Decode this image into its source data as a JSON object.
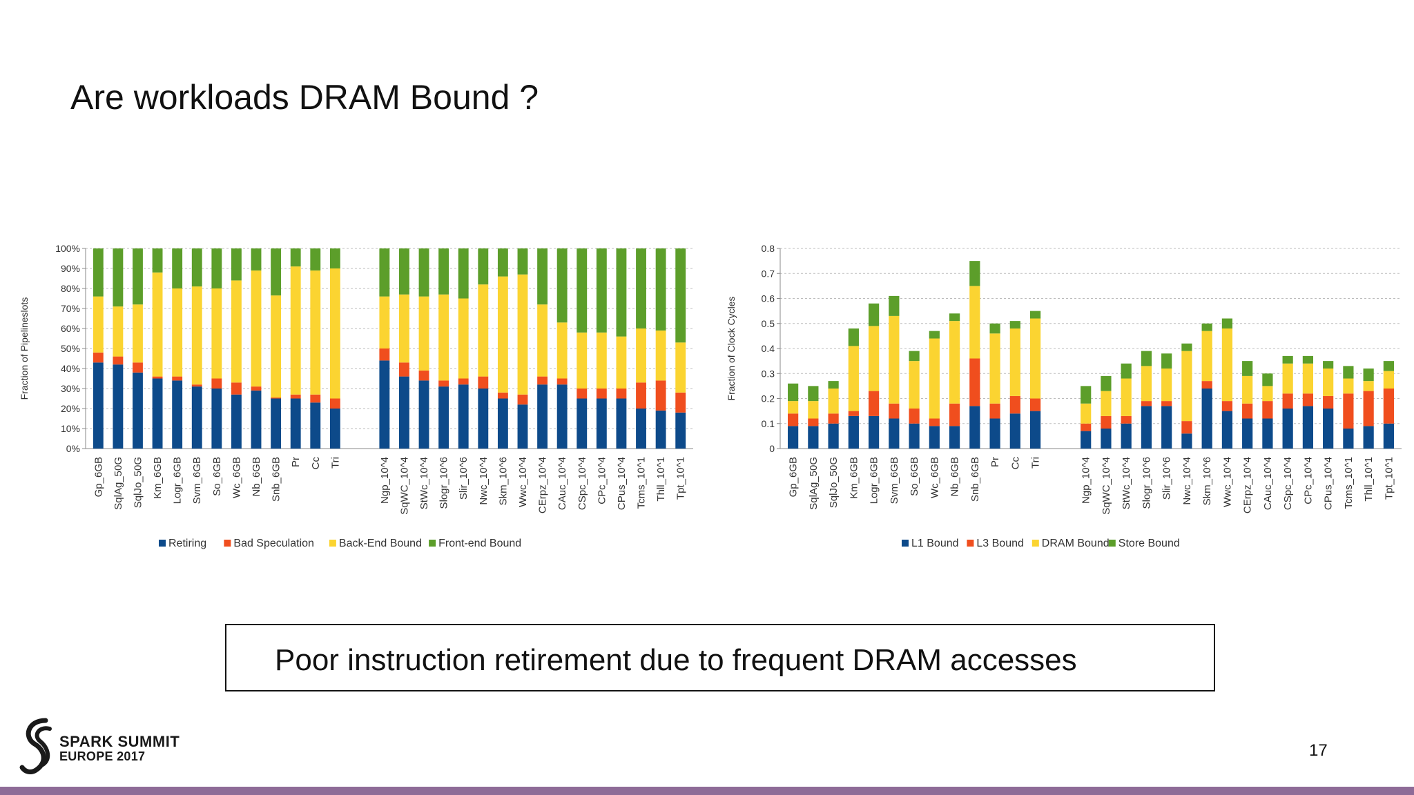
{
  "slide": {
    "title": "Are workloads DRAM Bound ?",
    "callout": "Poor instruction retirement due to frequent DRAM accesses",
    "page_number": "17",
    "logo": {
      "line1": "SPARK SUMMIT",
      "line2": "EUROPE 2017"
    },
    "bar_color": "#8e6b97"
  },
  "chart_data": [
    {
      "type": "bar",
      "stacked": true,
      "ylabel": "Fraction of Pipelineslots",
      "ylim": [
        0,
        100
      ],
      "yticks": [
        0,
        10,
        20,
        30,
        40,
        50,
        60,
        70,
        80,
        90,
        100
      ],
      "ytick_labels": [
        "0%",
        "10%",
        "20%",
        "30%",
        "40%",
        "50%",
        "60%",
        "70%",
        "80%",
        "90%",
        "100%"
      ],
      "grid": true,
      "legend_position": "bottom",
      "groups": [
        [
          "Gp_6GB",
          "SqlAg_50G",
          "SqlJo_50G",
          "Km_6GB",
          "Logr_6GB",
          "Svm_6GB",
          "So_6GB",
          "Wc_6GB",
          "Nb_6GB",
          "Snb_6GB",
          "Pr",
          "Cc",
          "Tri"
        ],
        [
          "Ngp_10^4",
          "SqWC_10^4",
          "StWc_10^4",
          "Slogr_10^6",
          "Slir_10^6",
          "Nwc_10^4",
          "Skm_10^6",
          "Wwc_10^4",
          "CErpz_10^4",
          "CAuc_10^4",
          "CSpc_10^4",
          "CPc_10^4",
          "CPus_10^4",
          "Tcms_10^1",
          "Thll_10^1",
          "Tpt_10^1"
        ]
      ],
      "series": [
        {
          "name": "Retiring",
          "color": "#0d4a8a",
          "values": [
            43,
            42,
            38,
            35,
            34,
            31,
            30,
            27,
            29,
            25,
            25,
            23,
            20,
            44,
            36,
            34,
            31,
            32,
            30,
            25,
            22,
            32,
            32,
            25,
            25,
            25,
            20,
            19,
            18
          ]
        },
        {
          "name": "Bad Speculation",
          "color": "#f04e1e",
          "values": [
            5,
            4,
            5,
            1,
            2,
            1,
            5,
            6,
            2,
            0.5,
            2,
            4,
            5,
            6,
            7,
            5,
            3,
            3,
            6,
            3,
            5,
            4,
            3,
            5,
            5,
            5,
            13,
            15,
            10
          ]
        },
        {
          "name": "Back-End Bound",
          "color": "#fbd431",
          "values": [
            28,
            25,
            29,
            52,
            44,
            49,
            45,
            51,
            58,
            51,
            64,
            62,
            65,
            26,
            34,
            37,
            43,
            40,
            46,
            58,
            60,
            36,
            28,
            28,
            28,
            26,
            27,
            25,
            25
          ]
        },
        {
          "name": "Front-end Bound",
          "color": "#5c9e2a",
          "values": [
            24,
            29,
            28,
            12,
            20,
            19,
            20,
            16,
            11,
            23.5,
            9,
            11,
            10,
            24,
            23,
            24,
            23,
            25,
            18,
            14,
            13,
            28,
            37,
            42,
            42,
            44,
            40,
            41,
            47
          ]
        }
      ]
    },
    {
      "type": "bar",
      "stacked": true,
      "ylabel": "Fraction of Clock Cycles",
      "ylim": [
        0,
        0.8
      ],
      "yticks": [
        0,
        0.1,
        0.2,
        0.3,
        0.4,
        0.5,
        0.6,
        0.7,
        0.8
      ],
      "ytick_labels": [
        "0",
        "0.1",
        "0.2",
        "0.3",
        "0.4",
        "0.5",
        "0.6",
        "0.7",
        "0.8"
      ],
      "grid": true,
      "legend_position": "bottom",
      "groups": [
        [
          "Gp_6GB",
          "SqlAg_50G",
          "SqlJo_50G",
          "Km_6GB",
          "Logr_6GB",
          "Svm_6GB",
          "So_6GB",
          "Wc_6GB",
          "Nb_6GB",
          "Snb_6GB",
          "Pr",
          "Cc",
          "Tri"
        ],
        [
          "Ngp_10^4",
          "SqWC_10^4",
          "StWc_10^4",
          "Slogr_10^6",
          "Slir_10^6",
          "Nwc_10^4",
          "Skm_10^6",
          "Wwc_10^4",
          "CErpz_10^4",
          "CAuc_10^4",
          "CSpc_10^4",
          "CPc_10^4",
          "CPus_10^4",
          "Tcms_10^1",
          "Thll_10^1",
          "Tpt_10^1"
        ]
      ],
      "series": [
        {
          "name": "L1 Bound",
          "color": "#0d4a8a",
          "values": [
            0.09,
            0.09,
            0.1,
            0.13,
            0.13,
            0.12,
            0.1,
            0.09,
            0.09,
            0.17,
            0.12,
            0.14,
            0.15,
            0.07,
            0.08,
            0.1,
            0.17,
            0.17,
            0.06,
            0.24,
            0.15,
            0.12,
            0.12,
            0.16,
            0.17,
            0.16,
            0.08,
            0.09,
            0.1
          ]
        },
        {
          "name": "L3 Bound",
          "color": "#f04e1e",
          "values": [
            0.05,
            0.03,
            0.04,
            0.02,
            0.1,
            0.06,
            0.06,
            0.03,
            0.09,
            0.19,
            0.06,
            0.07,
            0.05,
            0.03,
            0.05,
            0.03,
            0.02,
            0.02,
            0.05,
            0.03,
            0.04,
            0.06,
            0.07,
            0.06,
            0.05,
            0.05,
            0.14,
            0.14,
            0.14
          ]
        },
        {
          "name": "DRAM Bound",
          "color": "#fbd431",
          "values": [
            0.05,
            0.07,
            0.1,
            0.26,
            0.26,
            0.35,
            0.19,
            0.32,
            0.33,
            0.29,
            0.28,
            0.27,
            0.32,
            0.08,
            0.1,
            0.15,
            0.14,
            0.13,
            0.28,
            0.2,
            0.29,
            0.11,
            0.06,
            0.12,
            0.12,
            0.11,
            0.06,
            0.04,
            0.07
          ]
        },
        {
          "name": "Store Bound",
          "color": "#5c9e2a",
          "values": [
            0.07,
            0.06,
            0.03,
            0.07,
            0.09,
            0.08,
            0.04,
            0.03,
            0.03,
            0.1,
            0.04,
            0.03,
            0.03,
            0.07,
            0.06,
            0.06,
            0.06,
            0.06,
            0.03,
            0.03,
            0.04,
            0.06,
            0.05,
            0.03,
            0.03,
            0.03,
            0.05,
            0.05,
            0.04
          ]
        }
      ]
    }
  ]
}
